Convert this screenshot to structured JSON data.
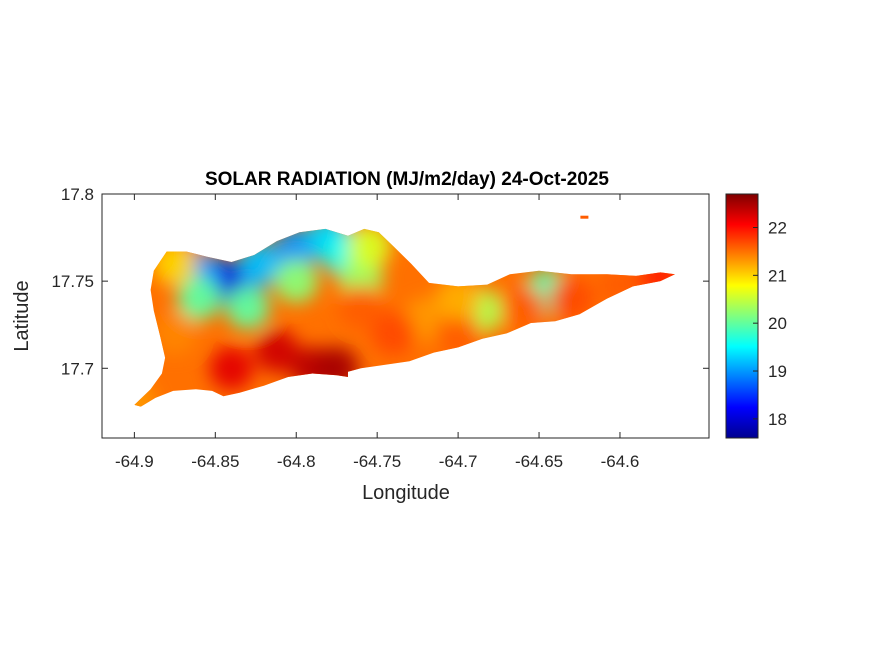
{
  "figure": {
    "title": "SOLAR RADIATION (MJ/m2/day) 24-Oct-2025",
    "xlabel": "Longitude",
    "ylabel": "Latitude"
  },
  "chart_data": {
    "type": "heatmap",
    "title": "SOLAR RADIATION (MJ/m2/day) 24-Oct-2025",
    "xlabel": "Longitude",
    "ylabel": "Latitude",
    "xlim": [
      -64.92,
      -64.545
    ],
    "ylim": [
      17.66,
      17.8
    ],
    "xticks": [
      -64.9,
      -64.85,
      -64.8,
      -64.75,
      -64.7,
      -64.65,
      -64.6
    ],
    "xtick_labels": [
      "-64.9",
      "-64.85",
      "-64.8",
      "-64.75",
      "-64.7",
      "-64.65",
      "-64.6"
    ],
    "yticks": [
      17.7,
      17.75,
      17.8
    ],
    "ytick_labels": [
      "17.7",
      "17.75",
      "17.8"
    ],
    "colormap": "jet",
    "clim": [
      17.6,
      22.7
    ],
    "colorbar_ticks": [
      18,
      19,
      20,
      21,
      22
    ],
    "colorbar_tick_labels": [
      "18",
      "19",
      "20",
      "21",
      "22"
    ],
    "grid": false,
    "island_outline": [
      [
        -64.9,
        17.679
      ],
      [
        -64.89,
        17.688
      ],
      [
        -64.883,
        17.697
      ],
      [
        -64.881,
        17.706
      ],
      [
        -64.884,
        17.718
      ],
      [
        -64.888,
        17.733
      ],
      [
        -64.89,
        17.745
      ],
      [
        -64.888,
        17.756
      ],
      [
        -64.88,
        17.767
      ],
      [
        -64.868,
        17.767
      ],
      [
        -64.855,
        17.764
      ],
      [
        -64.84,
        17.761
      ],
      [
        -64.826,
        17.765
      ],
      [
        -64.812,
        17.773
      ],
      [
        -64.798,
        17.778
      ],
      [
        -64.782,
        17.78
      ],
      [
        -64.768,
        17.776
      ],
      [
        -64.758,
        17.78
      ],
      [
        -64.749,
        17.778
      ],
      [
        -64.74,
        17.77
      ],
      [
        -64.729,
        17.76
      ],
      [
        -64.718,
        17.749
      ],
      [
        -64.7,
        17.747
      ],
      [
        -64.682,
        17.748
      ],
      [
        -64.668,
        17.754
      ],
      [
        -64.65,
        17.756
      ],
      [
        -64.63,
        17.754
      ],
      [
        -64.608,
        17.754
      ],
      [
        -64.59,
        17.753
      ],
      [
        -64.575,
        17.755
      ],
      [
        -64.566,
        17.754
      ],
      [
        -64.575,
        17.75
      ],
      [
        -64.592,
        17.747
      ],
      [
        -64.608,
        17.74
      ],
      [
        -64.625,
        17.731
      ],
      [
        -64.64,
        17.727
      ],
      [
        -64.655,
        17.726
      ],
      [
        -64.67,
        17.72
      ],
      [
        -64.685,
        17.717
      ],
      [
        -64.7,
        17.712
      ],
      [
        -64.715,
        17.709
      ],
      [
        -64.73,
        17.704
      ],
      [
        -64.745,
        17.702
      ],
      [
        -64.76,
        17.7
      ],
      [
        -64.768,
        17.698
      ],
      [
        -64.768,
        17.695
      ],
      [
        -64.775,
        17.696
      ],
      [
        -64.79,
        17.697
      ],
      [
        -64.805,
        17.695
      ],
      [
        -64.82,
        17.69
      ],
      [
        -64.835,
        17.686
      ],
      [
        -64.845,
        17.684
      ],
      [
        -64.852,
        17.687
      ],
      [
        -64.862,
        17.688
      ],
      [
        -64.876,
        17.687
      ],
      [
        -64.887,
        17.683
      ],
      [
        -64.896,
        17.678
      ]
    ],
    "hotspots": [
      {
        "lon": -64.845,
        "lat": 17.75,
        "value": 18.3
      },
      {
        "lon": -64.835,
        "lat": 17.748,
        "value": 18.0
      },
      {
        "lon": -64.86,
        "lat": 17.755,
        "value": 19.0
      },
      {
        "lon": -64.822,
        "lat": 17.76,
        "value": 19.2
      },
      {
        "lon": -64.8,
        "lat": 17.768,
        "value": 19.0
      },
      {
        "lon": -64.78,
        "lat": 17.775,
        "value": 19.3
      },
      {
        "lon": -64.77,
        "lat": 17.765,
        "value": 19.6
      },
      {
        "lon": -64.86,
        "lat": 17.74,
        "value": 20.0
      },
      {
        "lon": -64.83,
        "lat": 17.735,
        "value": 20.0
      },
      {
        "lon": -64.8,
        "lat": 17.75,
        "value": 20.2
      },
      {
        "lon": -64.76,
        "lat": 17.752,
        "value": 20.3
      },
      {
        "lon": -64.755,
        "lat": 17.77,
        "value": 20.6
      },
      {
        "lon": -64.645,
        "lat": 17.744,
        "value": 19.9
      },
      {
        "lon": -64.685,
        "lat": 17.733,
        "value": 20.4
      },
      {
        "lon": -64.72,
        "lat": 17.728,
        "value": 21.3
      },
      {
        "lon": -64.875,
        "lat": 17.76,
        "value": 21.0
      },
      {
        "lon": -64.875,
        "lat": 17.72,
        "value": 21.4
      },
      {
        "lon": -64.9,
        "lat": 17.68,
        "value": 21.3
      },
      {
        "lon": -64.84,
        "lat": 17.7,
        "value": 22.2
      },
      {
        "lon": -64.812,
        "lat": 17.71,
        "value": 22.3
      },
      {
        "lon": -64.79,
        "lat": 17.7,
        "value": 22.4
      },
      {
        "lon": -64.775,
        "lat": 17.7,
        "value": 22.5
      },
      {
        "lon": -64.76,
        "lat": 17.735,
        "value": 21.6
      },
      {
        "lon": -64.74,
        "lat": 17.72,
        "value": 21.7
      },
      {
        "lon": -64.7,
        "lat": 17.72,
        "value": 21.6
      },
      {
        "lon": -64.7,
        "lat": 17.74,
        "value": 21.2
      },
      {
        "lon": -64.66,
        "lat": 17.735,
        "value": 21.6
      },
      {
        "lon": -64.63,
        "lat": 17.74,
        "value": 21.7
      },
      {
        "lon": -64.6,
        "lat": 17.748,
        "value": 21.6
      },
      {
        "lon": -64.575,
        "lat": 17.753,
        "value": 21.9
      }
    ],
    "islet": {
      "lon": -64.622,
      "lat": 17.787,
      "value": 21.6
    }
  }
}
